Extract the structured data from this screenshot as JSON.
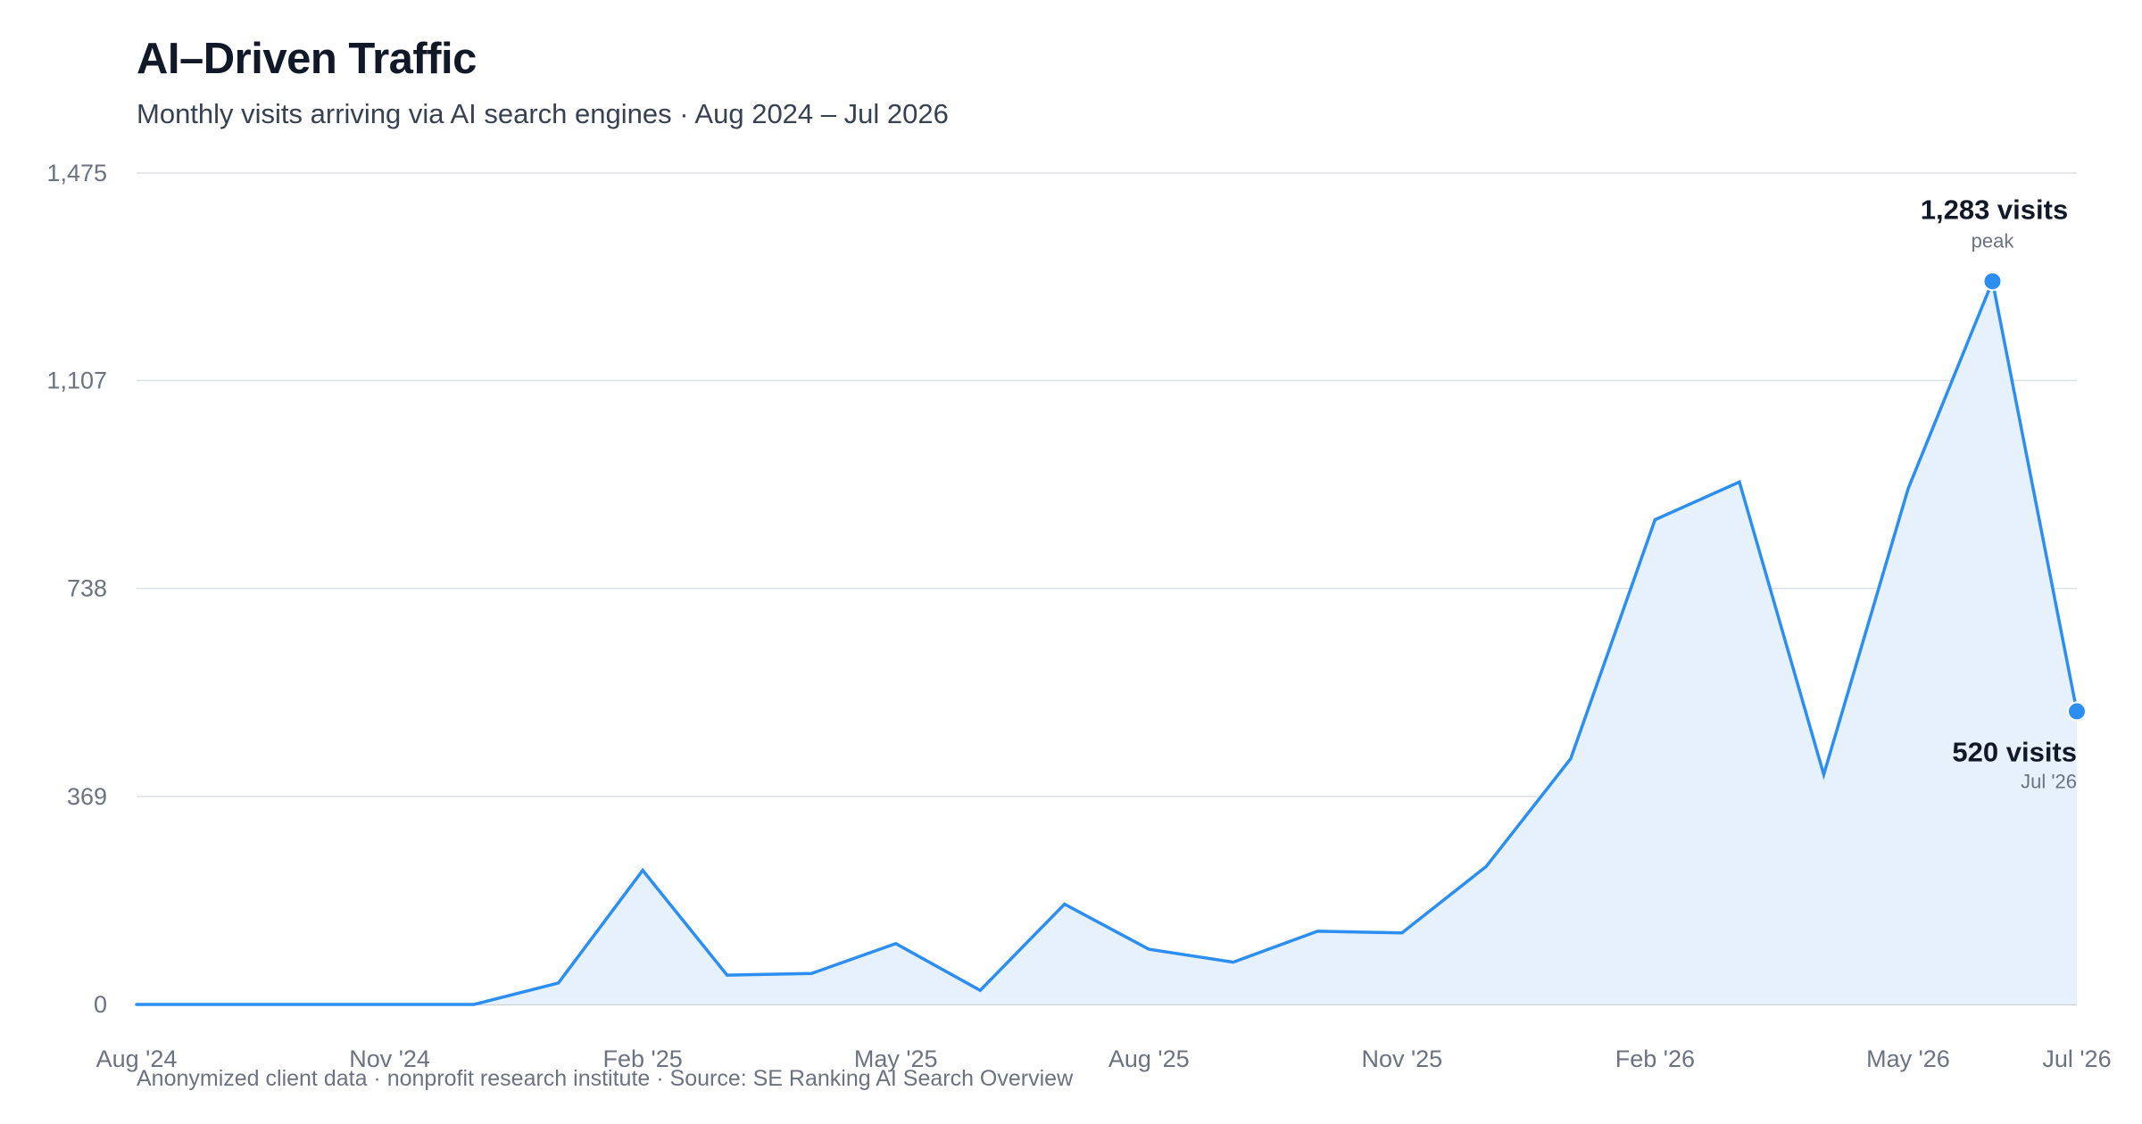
{
  "header": {
    "title": "AI–Driven Traffic",
    "subtitle": "Monthly visits arriving via AI search engines · Aug 2024 – Jul 2026"
  },
  "footer": {
    "source": "Anonymized client data · nonprofit research institute · Source: SE Ranking AI Search Overview"
  },
  "colors": {
    "line": "#2b8ef0",
    "area": "#e6f1fc",
    "grid": "#dde1e6",
    "baseline": "#c9ced6"
  },
  "chart_data": {
    "type": "area",
    "title": "AI–Driven Traffic",
    "subtitle": "Monthly visits arriving via AI search engines · Aug 2024 – Jul 2026",
    "xlabel": "",
    "ylabel": "",
    "ylim": [
      0,
      1475
    ],
    "y_ticks": [
      0,
      369,
      738,
      1107,
      1475
    ],
    "y_tick_labels": [
      "0",
      "369",
      "738",
      "1,107",
      "1,475"
    ],
    "grid": true,
    "months": [
      "Aug '24",
      "Sep '24",
      "Oct '24",
      "Nov '24",
      "Dec '24",
      "Jan '25",
      "Feb '25",
      "Mar '25",
      "Apr '25",
      "May '25",
      "Jun '25",
      "Jul '25",
      "Aug '25",
      "Sep '25",
      "Oct '25",
      "Nov '25",
      "Dec '25",
      "Jan '26",
      "Feb '26",
      "Mar '26",
      "Apr '26",
      "May '26",
      "Jun '26",
      "Jul '26"
    ],
    "x_tick_labels": [
      {
        "index": 0,
        "label": "Aug '24"
      },
      {
        "index": 3,
        "label": "Nov '24"
      },
      {
        "index": 6,
        "label": "Feb '25"
      },
      {
        "index": 9,
        "label": "May '25"
      },
      {
        "index": 12,
        "label": "Aug '25"
      },
      {
        "index": 15,
        "label": "Nov '25"
      },
      {
        "index": 18,
        "label": "Feb '26"
      },
      {
        "index": 21,
        "label": "May '26"
      },
      {
        "index": 23,
        "label": "Jul '26"
      }
    ],
    "series": [
      {
        "values": [
          0,
          0,
          0,
          0,
          0,
          38,
          238,
          52,
          55,
          108,
          25,
          178,
          98,
          75,
          130,
          127,
          245,
          436,
          860,
          927,
          408,
          915,
          1283,
          520
        ]
      }
    ],
    "annotations": [
      {
        "index": 22,
        "value": 1283,
        "label": "1,283 visits",
        "sublabel": "peak"
      },
      {
        "index": 23,
        "value": 520,
        "label": "520 visits",
        "sublabel": "Jul '26"
      }
    ]
  }
}
